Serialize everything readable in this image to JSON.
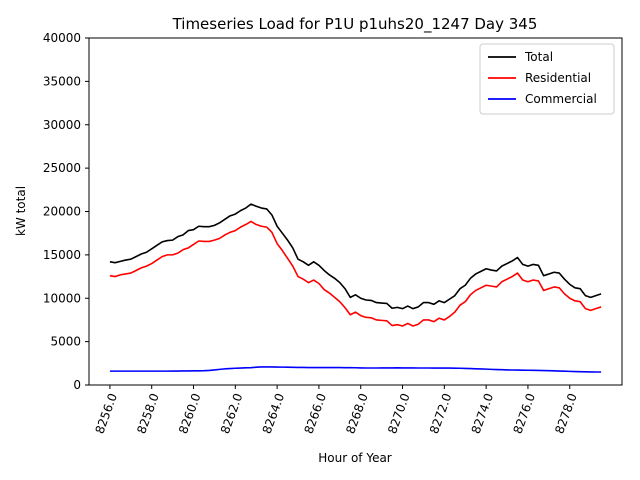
{
  "chart_data": {
    "type": "line",
    "title": "Timeseries Load for P1U p1uhs20_1247  Day 345",
    "xlabel": "Hour of Year",
    "ylabel": "kW total",
    "xlim": [
      8255.0,
      8280.5
    ],
    "ylim": [
      0,
      40000
    ],
    "xticks": [
      8256,
      8258,
      8260,
      8262,
      8264,
      8266,
      8268,
      8270,
      8272,
      8274,
      8276,
      8278
    ],
    "xtick_labels": [
      "8256.0",
      "8258.0",
      "8260.0",
      "8262.0",
      "8264.0",
      "8266.0",
      "8268.0",
      "8270.0",
      "8272.0",
      "8274.0",
      "8276.0",
      "8278.0"
    ],
    "yticks": [
      0,
      5000,
      10000,
      15000,
      20000,
      25000,
      30000,
      35000,
      40000
    ],
    "ytick_labels": [
      "0",
      "5000",
      "10000",
      "15000",
      "20000",
      "25000",
      "30000",
      "35000",
      "40000"
    ],
    "legend_position": "top-right",
    "x_start": 8256.0,
    "x_step": 0.25,
    "series": [
      {
        "name": "Total",
        "color": "#000000",
        "values": [
          14200,
          14100,
          14250,
          14400,
          14500,
          14800,
          15100,
          15300,
          15700,
          16100,
          16500,
          16650,
          16700,
          17100,
          17300,
          17800,
          17900,
          18300,
          18250,
          18250,
          18400,
          18700,
          19100,
          19500,
          19700,
          20100,
          20400,
          20850,
          20600,
          20400,
          20300,
          19600,
          18300,
          17500,
          16700,
          15800,
          14500,
          14200,
          13800,
          14200,
          13800,
          13200,
          12700,
          12300,
          11800,
          11100,
          10100,
          10400,
          10000,
          9800,
          9750,
          9500,
          9450,
          9400,
          8850,
          8950,
          8800,
          9100,
          8800,
          9000,
          9500,
          9500,
          9300,
          9700,
          9500,
          9900,
          10300,
          11100,
          11500,
          12300,
          12800,
          13100,
          13400,
          13250,
          13150,
          13700,
          14000,
          14300,
          14700,
          13900,
          13700,
          13900,
          13800,
          12600,
          12800,
          13000,
          12900,
          12200,
          11600,
          11200,
          11100,
          10300,
          10100,
          10300,
          10500
        ]
      },
      {
        "name": "Residential",
        "color": "#ff0000",
        "values": [
          12600,
          12500,
          12700,
          12800,
          12900,
          13200,
          13500,
          13700,
          14000,
          14400,
          14800,
          15000,
          15000,
          15200,
          15600,
          15800,
          16200,
          16600,
          16550,
          16550,
          16700,
          16900,
          17300,
          17600,
          17800,
          18200,
          18500,
          18850,
          18500,
          18300,
          18200,
          17600,
          16300,
          15500,
          14600,
          13700,
          12500,
          12200,
          11800,
          12100,
          11700,
          11000,
          10600,
          10100,
          9600,
          8900,
          8100,
          8400,
          8000,
          7800,
          7750,
          7500,
          7450,
          7400,
          6850,
          6950,
          6800,
          7100,
          6800,
          7000,
          7500,
          7500,
          7300,
          7700,
          7500,
          7900,
          8400,
          9200,
          9600,
          10400,
          10900,
          11200,
          11500,
          11400,
          11300,
          11900,
          12200,
          12500,
          12900,
          12100,
          11900,
          12100,
          12000,
          10900,
          11100,
          11300,
          11200,
          10500,
          10000,
          9700,
          9600,
          8800,
          8600,
          8800,
          9000
        ]
      },
      {
        "name": "Commercial",
        "color": "#0000ff",
        "values": [
          1600,
          1600,
          1600,
          1600,
          1600,
          1600,
          1600,
          1600,
          1600,
          1600,
          1600,
          1600,
          1610,
          1610,
          1620,
          1620,
          1630,
          1640,
          1650,
          1680,
          1740,
          1800,
          1860,
          1900,
          1930,
          1950,
          1980,
          2000,
          2050,
          2080,
          2080,
          2080,
          2070,
          2060,
          2050,
          2040,
          2030,
          2020,
          2010,
          2010,
          2010,
          2010,
          2010,
          2010,
          2010,
          2000,
          2000,
          1990,
          1970,
          1960,
          1960,
          1960,
          1970,
          1970,
          1970,
          1980,
          1970,
          1970,
          1970,
          1960,
          1960,
          1960,
          1950,
          1950,
          1950,
          1950,
          1940,
          1930,
          1910,
          1890,
          1870,
          1850,
          1830,
          1800,
          1780,
          1760,
          1740,
          1730,
          1720,
          1710,
          1700,
          1690,
          1680,
          1660,
          1650,
          1630,
          1610,
          1590,
          1570,
          1550,
          1530,
          1520,
          1510,
          1500,
          1500
        ]
      }
    ]
  }
}
